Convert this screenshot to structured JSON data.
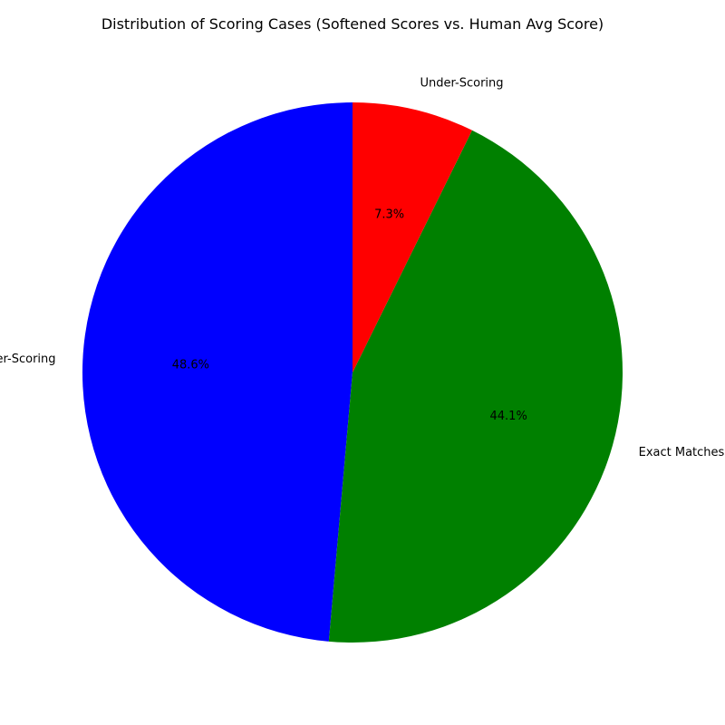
{
  "chart_data": {
    "type": "pie",
    "title": "Distribution of Scoring Cases (Softened Scores vs. Human Avg Score)",
    "start_angle_deg": 90,
    "direction": "counterclockwise",
    "slices": [
      {
        "label": "Over-Scoring",
        "value": 48.6,
        "pct_label": "48.6%",
        "color": "#0000ff"
      },
      {
        "label": "Exact Matches",
        "value": 44.1,
        "pct_label": "44.1%",
        "color": "#008000"
      },
      {
        "label": "Under-Scoring",
        "value": 7.3,
        "pct_label": "7.3%",
        "color": "#ff0000"
      }
    ]
  }
}
